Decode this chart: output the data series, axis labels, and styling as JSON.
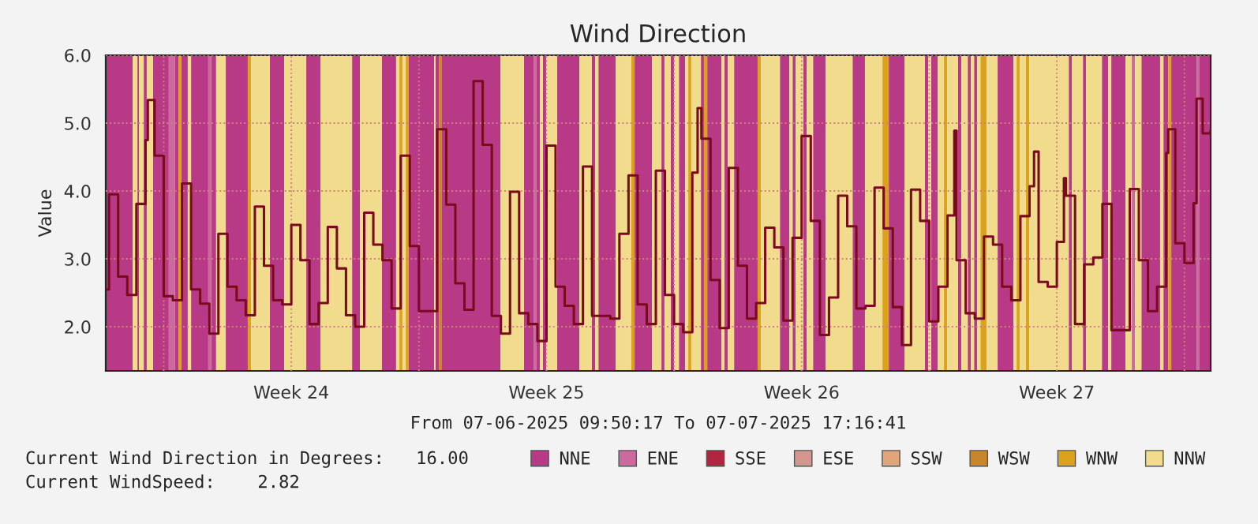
{
  "chart_data": {
    "type": "area",
    "title": "Wind Direction",
    "ylabel": "Value",
    "xlabel": "From 07-06-2025 09:50:17 To 07-07-2025 17:16:41",
    "xlim": [
      "2025-06-07T09:50",
      "2025-07-07T17:16"
    ],
    "xticks": [
      {
        "value": "2025-06-09T00:00",
        "label": null
      },
      {
        "value": "2025-06-12T12:00",
        "label": "Week 24"
      },
      {
        "value": "2025-06-16T00:00",
        "label": null
      },
      {
        "value": "2025-06-19T12:00",
        "label": "Week 25"
      },
      {
        "value": "2025-06-23T00:00",
        "label": null
      },
      {
        "value": "2025-06-26T12:00",
        "label": "Week 26"
      },
      {
        "value": "2025-06-30T00:00",
        "label": null
      },
      {
        "value": "2025-07-03T12:00",
        "label": "Week 27"
      },
      {
        "value": "2025-07-07T00:00",
        "label": null
      }
    ],
    "ylim": [
      1.35,
      6.0
    ],
    "yticks": [
      {
        "value": 2,
        "label": "2.0"
      },
      {
        "value": 3,
        "label": "3.0"
      },
      {
        "value": 4,
        "label": "4.0"
      },
      {
        "value": 5,
        "label": "5.0"
      },
      {
        "value": 6,
        "label": "6.0"
      }
    ],
    "grid": true,
    "legend": "bottom",
    "annotations": [
      "Current Wind Direction in Degrees:   16.00",
      "Current WindSpeed:    2.82"
    ],
    "bands": [
      {
        "axis": "x",
        "from": "2025-06-07T09:50",
        "to": "2025-06-08T03:30",
        "color": "#b83a87"
      },
      {
        "axis": "x",
        "from": "2025-06-08T06:40",
        "to": "2025-06-08T07:40",
        "color": "#b83a87"
      },
      {
        "axis": "x",
        "from": "2025-06-08T10:50",
        "to": "2025-06-08T12:50",
        "color": "#b83a87"
      },
      {
        "axis": "x",
        "from": "2025-06-08T17:00",
        "to": "2025-06-09T03:20",
        "color": "#b83a87"
      },
      {
        "axis": "x",
        "from": "2025-06-09T07:30",
        "to": "2025-06-09T09:40",
        "color": "#b83a87"
      },
      {
        "axis": "x",
        "from": "2025-06-09T11:40",
        "to": "2025-06-09T15:50",
        "color": "#b83a87"
      },
      {
        "axis": "x",
        "from": "2025-06-09T18:00",
        "to": "2025-06-10T05:20",
        "color": "#b83a87"
      },
      {
        "axis": "x",
        "from": "2025-06-10T07:30",
        "to": "2025-06-10T10:30",
        "color": "#b83a87"
      },
      {
        "axis": "x",
        "from": "2025-06-10T16:50",
        "to": "2025-06-11T07:20",
        "color": "#b83a87"
      },
      {
        "axis": "x",
        "from": "2025-06-11T21:50",
        "to": "2025-06-12T07:20",
        "color": "#b83a87"
      },
      {
        "axis": "x",
        "from": "2025-06-12T21:50",
        "to": "2025-06-13T07:10",
        "color": "#b83a87"
      },
      {
        "axis": "x",
        "from": "2025-06-14T04:00",
        "to": "2025-06-14T09:10",
        "color": "#b83a87"
      },
      {
        "axis": "x",
        "from": "2025-06-14T23:40",
        "to": "2025-06-15T09:00",
        "color": "#b83a87"
      },
      {
        "axis": "x",
        "from": "2025-06-15T17:20",
        "to": "2025-06-16T10:00",
        "color": "#b83a87"
      },
      {
        "axis": "x",
        "from": "2025-06-16T11:00",
        "to": "2025-06-16T13:10",
        "color": "#b83a87"
      },
      {
        "axis": "x",
        "from": "2025-06-16T15:10",
        "to": "2025-06-18T05:40",
        "color": "#b83a87"
      },
      {
        "axis": "x",
        "from": "2025-06-18T21:10",
        "to": "2025-06-19T03:30",
        "color": "#b83a87"
      },
      {
        "axis": "x",
        "from": "2025-06-19T05:30",
        "to": "2025-06-19T07:40",
        "color": "#b83a87"
      },
      {
        "axis": "x",
        "from": "2025-06-19T09:40",
        "to": "2025-06-19T11:50",
        "color": "#b83a87"
      },
      {
        "axis": "x",
        "from": "2025-06-19T19:00",
        "to": "2025-06-20T09:40",
        "color": "#b83a87"
      },
      {
        "axis": "x",
        "from": "2025-06-20T17:50",
        "to": "2025-06-20T20:00",
        "color": "#b83a87"
      },
      {
        "axis": "x",
        "from": "2025-06-20T22:10",
        "to": "2025-06-21T09:30",
        "color": "#b83a87"
      },
      {
        "axis": "x",
        "from": "2025-06-21T22:00",
        "to": "2025-06-22T09:30",
        "color": "#b83a87"
      },
      {
        "axis": "x",
        "from": "2025-06-22T15:40",
        "to": "2025-06-22T17:40",
        "color": "#b83a87"
      },
      {
        "axis": "x",
        "from": "2025-06-22T21:50",
        "to": "2025-06-23T00:00",
        "color": "#b83a87"
      },
      {
        "axis": "x",
        "from": "2025-06-23T03:10",
        "to": "2025-06-23T07:20",
        "color": "#b83a87"
      },
      {
        "axis": "x",
        "from": "2025-06-23T17:40",
        "to": "2025-06-23T19:40",
        "color": "#b83a87"
      },
      {
        "axis": "x",
        "from": "2025-06-23T21:50",
        "to": "2025-06-24T07:10",
        "color": "#b83a87"
      },
      {
        "axis": "x",
        "from": "2025-06-24T09:10",
        "to": "2025-06-24T11:20",
        "color": "#b83a87"
      },
      {
        "axis": "x",
        "from": "2025-06-24T15:30",
        "to": "2025-06-25T07:00",
        "color": "#b83a87"
      },
      {
        "axis": "x",
        "from": "2025-06-25T21:40",
        "to": "2025-06-26T03:50",
        "color": "#b83a87"
      },
      {
        "axis": "x",
        "from": "2025-06-26T06:00",
        "to": "2025-06-26T08:00",
        "color": "#b83a87"
      },
      {
        "axis": "x",
        "from": "2025-06-26T13:10",
        "to": "2025-06-26T15:20",
        "color": "#b83a87"
      },
      {
        "axis": "x",
        "from": "2025-06-26T19:30",
        "to": "2025-06-27T03:50",
        "color": "#b83a87"
      },
      {
        "axis": "x",
        "from": "2025-06-27T21:30",
        "to": "2025-06-28T05:40",
        "color": "#b83a87"
      },
      {
        "axis": "x",
        "from": "2025-06-28T21:20",
        "to": "2025-06-29T07:40",
        "color": "#b83a87"
      },
      {
        "axis": "x",
        "from": "2025-06-29T21:10",
        "to": "2025-06-29T23:20",
        "color": "#b83a87"
      },
      {
        "axis": "x",
        "from": "2025-06-30T01:20",
        "to": "2025-06-30T05:30",
        "color": "#b83a87"
      },
      {
        "axis": "x",
        "from": "2025-06-30T19:00",
        "to": "2025-06-30T21:10",
        "color": "#b83a87"
      },
      {
        "axis": "x",
        "from": "2025-07-01T01:20",
        "to": "2025-07-01T03:20",
        "color": "#b83a87"
      },
      {
        "axis": "x",
        "from": "2025-07-01T05:30",
        "to": "2025-07-01T07:30",
        "color": "#b83a87"
      },
      {
        "axis": "x",
        "from": "2025-07-01T21:00",
        "to": "2025-07-02T07:30",
        "color": "#b83a87"
      },
      {
        "axis": "x",
        "from": "2025-07-03T19:50",
        "to": "2025-07-03T21:50",
        "color": "#b83a87"
      },
      {
        "axis": "x",
        "from": "2025-07-04T05:10",
        "to": "2025-07-04T07:10",
        "color": "#b83a87"
      },
      {
        "axis": "x",
        "from": "2025-07-04T17:40",
        "to": "2025-07-04T21:50",
        "color": "#b83a87"
      },
      {
        "axis": "x",
        "from": "2025-07-04T23:50",
        "to": "2025-07-05T09:10",
        "color": "#b83a87"
      },
      {
        "axis": "x",
        "from": "2025-07-05T19:40",
        "to": "2025-07-06T08:00",
        "color": "#b83a87"
      },
      {
        "axis": "x",
        "from": "2025-07-06T10:10",
        "to": "2025-07-06T13:20",
        "color": "#b83a87"
      },
      {
        "axis": "x",
        "from": "2025-07-06T15:20",
        "to": "2025-07-07T08:00",
        "color": "#b83a87"
      },
      {
        "axis": "x",
        "from": "2025-07-07T10:00",
        "to": "2025-07-07T17:16",
        "color": "#b83a87"
      },
      {
        "axis": "x",
        "from": "2025-06-09T03:20",
        "to": "2025-06-09T07:30",
        "color": "#cc6a9e"
      },
      {
        "axis": "x",
        "from": "2025-06-10T05:20",
        "to": "2025-06-10T07:30",
        "color": "#cc6a9e"
      },
      {
        "axis": "x",
        "from": "2025-06-19T03:30",
        "to": "2025-06-19T05:30",
        "color": "#cc6a9e"
      },
      {
        "axis": "x",
        "from": "2025-07-05T13:20",
        "to": "2025-07-05T15:30",
        "color": "#cc6a9e"
      },
      {
        "axis": "x",
        "from": "2025-07-07T08:00",
        "to": "2025-07-07T10:00",
        "color": "#cc6a9e"
      },
      {
        "axis": "x",
        "from": "2025-06-16T13:10",
        "to": "2025-06-16T15:10",
        "color": "#c9852c"
      },
      {
        "axis": "x",
        "from": "2025-06-09T09:40",
        "to": "2025-06-09T11:40",
        "color": "#dca21c"
      },
      {
        "axis": "x",
        "from": "2025-06-11T07:20",
        "to": "2025-06-11T09:30",
        "color": "#dca21c"
      },
      {
        "axis": "x",
        "from": "2025-06-15T11:10",
        "to": "2025-06-15T13:10",
        "color": "#dca21c"
      },
      {
        "axis": "x",
        "from": "2025-06-15T15:20",
        "to": "2025-06-15T17:20",
        "color": "#dca21c"
      },
      {
        "axis": "x",
        "from": "2025-06-21T19:50",
        "to": "2025-06-21T22:00",
        "color": "#dca21c"
      },
      {
        "axis": "x",
        "from": "2025-06-23T09:20",
        "to": "2025-06-23T11:20",
        "color": "#dca21c"
      },
      {
        "axis": "x",
        "from": "2025-06-23T19:40",
        "to": "2025-06-23T21:50",
        "color": "#dca21c"
      },
      {
        "axis": "x",
        "from": "2025-06-25T07:00",
        "to": "2025-06-25T09:10",
        "color": "#dca21c"
      },
      {
        "axis": "x",
        "from": "2025-06-28T17:10",
        "to": "2025-06-28T21:20",
        "color": "#dca21c"
      },
      {
        "axis": "x",
        "from": "2025-06-30T09:40",
        "to": "2025-06-30T11:50",
        "color": "#dca21c"
      },
      {
        "axis": "x",
        "from": "2025-07-01T09:40",
        "to": "2025-07-01T13:50",
        "color": "#dca21c"
      },
      {
        "axis": "x",
        "from": "2025-07-02T09:30",
        "to": "2025-07-02T11:30",
        "color": "#dca21c"
      },
      {
        "axis": "x",
        "from": "2025-07-02T15:40",
        "to": "2025-07-02T17:50",
        "color": "#dca21c"
      },
      {
        "axis": "x",
        "from": "2025-07-06T13:20",
        "to": "2025-07-06T15:20",
        "color": "#dca21c"
      },
      {
        "axis": "x",
        "from": "2025-06-08T03:30",
        "to": "2025-06-08T06:40",
        "color": "#f0dc8c"
      },
      {
        "axis": "x",
        "from": "2025-06-08T07:40",
        "to": "2025-06-08T10:50",
        "color": "#f0dc8c"
      },
      {
        "axis": "x",
        "from": "2025-06-08T12:50",
        "to": "2025-06-08T17:00",
        "color": "#f0dc8c"
      },
      {
        "axis": "x",
        "from": "2025-06-09T15:50",
        "to": "2025-06-09T18:00",
        "color": "#f0dc8c"
      },
      {
        "axis": "x",
        "from": "2025-06-10T10:30",
        "to": "2025-06-10T16:50",
        "color": "#f0dc8c"
      },
      {
        "axis": "x",
        "from": "2025-06-11T09:30",
        "to": "2025-06-11T21:50",
        "color": "#f0dc8c"
      },
      {
        "axis": "x",
        "from": "2025-06-12T07:20",
        "to": "2025-06-12T21:50",
        "color": "#f0dc8c"
      },
      {
        "axis": "x",
        "from": "2025-06-13T07:10",
        "to": "2025-06-14T04:00",
        "color": "#f0dc8c"
      },
      {
        "axis": "x",
        "from": "2025-06-14T09:10",
        "to": "2025-06-14T23:40",
        "color": "#f0dc8c"
      },
      {
        "axis": "x",
        "from": "2025-06-15T09:00",
        "to": "2025-06-15T11:10",
        "color": "#f0dc8c"
      },
      {
        "axis": "x",
        "from": "2025-06-15T13:10",
        "to": "2025-06-15T15:20",
        "color": "#f0dc8c"
      },
      {
        "axis": "x",
        "from": "2025-06-16T10:00",
        "to": "2025-06-16T11:00",
        "color": "#f0dc8c"
      },
      {
        "axis": "x",
        "from": "2025-06-18T05:40",
        "to": "2025-06-18T21:10",
        "color": "#f0dc8c"
      },
      {
        "axis": "x",
        "from": "2025-06-19T07:40",
        "to": "2025-06-19T09:40",
        "color": "#f0dc8c"
      },
      {
        "axis": "x",
        "from": "2025-06-19T11:50",
        "to": "2025-06-19T19:00",
        "color": "#f0dc8c"
      },
      {
        "axis": "x",
        "from": "2025-06-20T09:40",
        "to": "2025-06-20T17:50",
        "color": "#f0dc8c"
      },
      {
        "axis": "x",
        "from": "2025-06-20T20:00",
        "to": "2025-06-20T22:10",
        "color": "#f0dc8c"
      },
      {
        "axis": "x",
        "from": "2025-06-21T09:30",
        "to": "2025-06-21T19:50",
        "color": "#f0dc8c"
      },
      {
        "axis": "x",
        "from": "2025-06-22T09:30",
        "to": "2025-06-22T15:40",
        "color": "#f0dc8c"
      },
      {
        "axis": "x",
        "from": "2025-06-22T17:40",
        "to": "2025-06-22T21:50",
        "color": "#f0dc8c"
      },
      {
        "axis": "x",
        "from": "2025-06-23T00:00",
        "to": "2025-06-23T03:10",
        "color": "#f0dc8c"
      },
      {
        "axis": "x",
        "from": "2025-06-23T07:20",
        "to": "2025-06-23T09:20",
        "color": "#f0dc8c"
      },
      {
        "axis": "x",
        "from": "2025-06-23T11:20",
        "to": "2025-06-23T17:40",
        "color": "#f0dc8c"
      },
      {
        "axis": "x",
        "from": "2025-06-24T07:10",
        "to": "2025-06-24T09:10",
        "color": "#f0dc8c"
      },
      {
        "axis": "x",
        "from": "2025-06-24T11:20",
        "to": "2025-06-24T15:30",
        "color": "#f0dc8c"
      },
      {
        "axis": "x",
        "from": "2025-06-25T09:10",
        "to": "2025-06-25T21:40",
        "color": "#f0dc8c"
      },
      {
        "axis": "x",
        "from": "2025-06-26T03:50",
        "to": "2025-06-26T06:00",
        "color": "#f0dc8c"
      },
      {
        "axis": "x",
        "from": "2025-06-26T08:00",
        "to": "2025-06-26T13:10",
        "color": "#f0dc8c"
      },
      {
        "axis": "x",
        "from": "2025-06-26T15:20",
        "to": "2025-06-26T19:30",
        "color": "#f0dc8c"
      },
      {
        "axis": "x",
        "from": "2025-06-27T03:50",
        "to": "2025-06-27T21:30",
        "color": "#f0dc8c"
      },
      {
        "axis": "x",
        "from": "2025-06-28T05:40",
        "to": "2025-06-28T17:10",
        "color": "#f0dc8c"
      },
      {
        "axis": "x",
        "from": "2025-06-29T07:40",
        "to": "2025-06-29T21:10",
        "color": "#f0dc8c"
      },
      {
        "axis": "x",
        "from": "2025-06-29T23:20",
        "to": "2025-06-30T01:20",
        "color": "#f0dc8c"
      },
      {
        "axis": "x",
        "from": "2025-06-30T05:30",
        "to": "2025-06-30T09:40",
        "color": "#f0dc8c"
      },
      {
        "axis": "x",
        "from": "2025-06-30T11:50",
        "to": "2025-06-30T19:00",
        "color": "#f0dc8c"
      },
      {
        "axis": "x",
        "from": "2025-06-30T21:10",
        "to": "2025-07-01T01:20",
        "color": "#f0dc8c"
      },
      {
        "axis": "x",
        "from": "2025-07-01T03:20",
        "to": "2025-07-01T05:30",
        "color": "#f0dc8c"
      },
      {
        "axis": "x",
        "from": "2025-07-01T07:30",
        "to": "2025-07-01T09:40",
        "color": "#f0dc8c"
      },
      {
        "axis": "x",
        "from": "2025-07-01T13:50",
        "to": "2025-07-01T21:00",
        "color": "#f0dc8c"
      },
      {
        "axis": "x",
        "from": "2025-07-02T07:30",
        "to": "2025-07-02T09:30",
        "color": "#f0dc8c"
      },
      {
        "axis": "x",
        "from": "2025-07-02T11:30",
        "to": "2025-07-02T15:40",
        "color": "#f0dc8c"
      },
      {
        "axis": "x",
        "from": "2025-07-02T17:50",
        "to": "2025-07-03T19:50",
        "color": "#f0dc8c"
      },
      {
        "axis": "x",
        "from": "2025-07-03T21:50",
        "to": "2025-07-04T05:10",
        "color": "#f0dc8c"
      },
      {
        "axis": "x",
        "from": "2025-07-04T07:10",
        "to": "2025-07-04T17:40",
        "color": "#f0dc8c"
      },
      {
        "axis": "x",
        "from": "2025-07-04T21:50",
        "to": "2025-07-04T23:50",
        "color": "#f0dc8c"
      },
      {
        "axis": "x",
        "from": "2025-07-05T09:10",
        "to": "2025-07-05T13:20",
        "color": "#f0dc8c"
      },
      {
        "axis": "x",
        "from": "2025-07-05T15:30",
        "to": "2025-07-05T19:40",
        "color": "#f0dc8c"
      },
      {
        "axis": "x",
        "from": "2025-07-06T08:00",
        "to": "2025-07-06T10:10",
        "color": "#f0dc8c"
      }
    ],
    "series": [
      {
        "name": "NNE",
        "color": "#b83a87",
        "type": "area"
      },
      {
        "name": "ENE",
        "color": "#cc6a9e",
        "type": "area"
      },
      {
        "name": "SSE",
        "color": "#b0253f",
        "type": "area"
      },
      {
        "name": "ESE",
        "color": "#d4968f",
        "type": "area"
      },
      {
        "name": "SSW",
        "color": "#e2a47a",
        "type": "area"
      },
      {
        "name": "WSW",
        "color": "#c9852c",
        "type": "area"
      },
      {
        "name": "WNW",
        "color": "#dca21c",
        "type": "area"
      },
      {
        "name": "NNW",
        "color": "#f0dc8c",
        "type": "area"
      },
      {
        "color": "#7a0a1e",
        "type": "step",
        "x": [
          "2025-06-07T09:50",
          "2025-06-07T12:00",
          "2025-06-07T18:00",
          "2025-06-08T00:00",
          "2025-06-08T06:00",
          "2025-06-08T12:00",
          "2025-06-08T13:30",
          "2025-06-08T18:00",
          "2025-06-09T00:00",
          "2025-06-09T06:00",
          "2025-06-09T12:00",
          "2025-06-09T18:00",
          "2025-06-10T00:00",
          "2025-06-10T06:00",
          "2025-06-10T12:00",
          "2025-06-10T18:00",
          "2025-06-11T00:00",
          "2025-06-11T06:00",
          "2025-06-11T12:00",
          "2025-06-11T18:00",
          "2025-06-12T00:00",
          "2025-06-12T06:00",
          "2025-06-12T12:00",
          "2025-06-12T18:00",
          "2025-06-13T00:00",
          "2025-06-13T06:00",
          "2025-06-13T12:00",
          "2025-06-13T18:00",
          "2025-06-14T00:00",
          "2025-06-14T06:00",
          "2025-06-14T12:00",
          "2025-06-14T18:00",
          "2025-06-15T00:00",
          "2025-06-15T06:00",
          "2025-06-15T12:00",
          "2025-06-15T18:00",
          "2025-06-16T00:00",
          "2025-06-16T06:00",
          "2025-06-16T12:00",
          "2025-06-16T18:00",
          "2025-06-17T00:00",
          "2025-06-17T06:00",
          "2025-06-17T12:00",
          "2025-06-17T18:00",
          "2025-06-18T00:00",
          "2025-06-18T06:00",
          "2025-06-18T12:00",
          "2025-06-18T18:00",
          "2025-06-19T00:00",
          "2025-06-19T06:00",
          "2025-06-19T12:00",
          "2025-06-19T18:00",
          "2025-06-20T00:00",
          "2025-06-20T06:00",
          "2025-06-20T12:00",
          "2025-06-20T18:00",
          "2025-06-21T00:00",
          "2025-06-21T06:00",
          "2025-06-21T12:00",
          "2025-06-21T18:00",
          "2025-06-22T00:00",
          "2025-06-22T06:00",
          "2025-06-22T12:00",
          "2025-06-22T18:00",
          "2025-06-23T00:00",
          "2025-06-23T06:00",
          "2025-06-23T12:00",
          "2025-06-23T15:30",
          "2025-06-23T18:00",
          "2025-06-24T00:00",
          "2025-06-24T06:00",
          "2025-06-24T12:00",
          "2025-06-24T18:00",
          "2025-06-25T00:00",
          "2025-06-25T06:00",
          "2025-06-25T12:00",
          "2025-06-25T18:00",
          "2025-06-26T00:00",
          "2025-06-26T06:00",
          "2025-06-26T12:00",
          "2025-06-26T18:00",
          "2025-06-27T00:00",
          "2025-06-27T06:00",
          "2025-06-27T12:00",
          "2025-06-27T18:00",
          "2025-06-28T00:00",
          "2025-06-28T06:00",
          "2025-06-28T12:00",
          "2025-06-28T18:00",
          "2025-06-29T00:00",
          "2025-06-29T06:00",
          "2025-06-29T12:00",
          "2025-06-29T18:00",
          "2025-06-30T00:00",
          "2025-06-30T06:00",
          "2025-06-30T12:00",
          "2025-06-30T16:30",
          "2025-06-30T18:00",
          "2025-07-01T00:00",
          "2025-07-01T06:00",
          "2025-07-01T12:00",
          "2025-07-01T18:00",
          "2025-07-02T00:00",
          "2025-07-02T06:00",
          "2025-07-02T12:00",
          "2025-07-02T18:00",
          "2025-07-02T21:00",
          "2025-07-03T00:00",
          "2025-07-03T06:00",
          "2025-07-03T12:00",
          "2025-07-03T16:40",
          "2025-07-03T18:00",
          "2025-07-04T00:00",
          "2025-07-04T06:00",
          "2025-07-04T12:00",
          "2025-07-04T18:00",
          "2025-07-05T00:00",
          "2025-07-05T06:00",
          "2025-07-05T12:00",
          "2025-07-05T18:00",
          "2025-07-06T00:00",
          "2025-07-06T06:00",
          "2025-07-06T12:00",
          "2025-07-06T13:20",
          "2025-07-06T18:00",
          "2025-07-07T00:00",
          "2025-07-07T06:00",
          "2025-07-07T08:00",
          "2025-07-07T12:00",
          "2025-07-07T17:10"
        ],
        "values": [
          2.55,
          3.95,
          2.74,
          2.47,
          3.81,
          4.75,
          5.34,
          4.52,
          2.45,
          2.39,
          4.11,
          2.55,
          2.34,
          1.9,
          3.37,
          2.59,
          2.39,
          2.17,
          3.77,
          2.9,
          2.39,
          2.33,
          3.5,
          2.98,
          2.04,
          2.35,
          3.47,
          2.86,
          2.17,
          2.0,
          3.68,
          3.21,
          2.98,
          2.27,
          4.52,
          3.19,
          2.23,
          2.23,
          4.91,
          3.8,
          2.64,
          2.25,
          5.62,
          4.68,
          2.16,
          1.9,
          3.99,
          2.2,
          2.04,
          1.79,
          4.67,
          2.59,
          2.31,
          2.04,
          4.36,
          2.16,
          2.16,
          2.12,
          3.37,
          4.23,
          2.33,
          2.04,
          4.3,
          2.47,
          2.04,
          1.92,
          4.27,
          5.22,
          4.77,
          2.69,
          1.98,
          4.34,
          2.9,
          2.12,
          2.35,
          3.46,
          3.17,
          2.09,
          3.31,
          4.81,
          3.56,
          1.88,
          2.43,
          3.93,
          3.48,
          2.27,
          2.31,
          4.05,
          3.45,
          2.29,
          1.73,
          4.02,
          3.56,
          2.08,
          2.59,
          3.64,
          4.89,
          2.98,
          2.2,
          2.12,
          3.33,
          3.21,
          2.59,
          2.39,
          3.63,
          4.07,
          4.58,
          2.66,
          2.59,
          3.25,
          4.19,
          3.93,
          2.04,
          2.92,
          3.02,
          3.81,
          1.95,
          1.95,
          4.03,
          2.98,
          2.23,
          2.59,
          4.56,
          4.91,
          3.23,
          2.94,
          3.82,
          5.36,
          4.85,
          4.89
        ]
      }
    ]
  }
}
